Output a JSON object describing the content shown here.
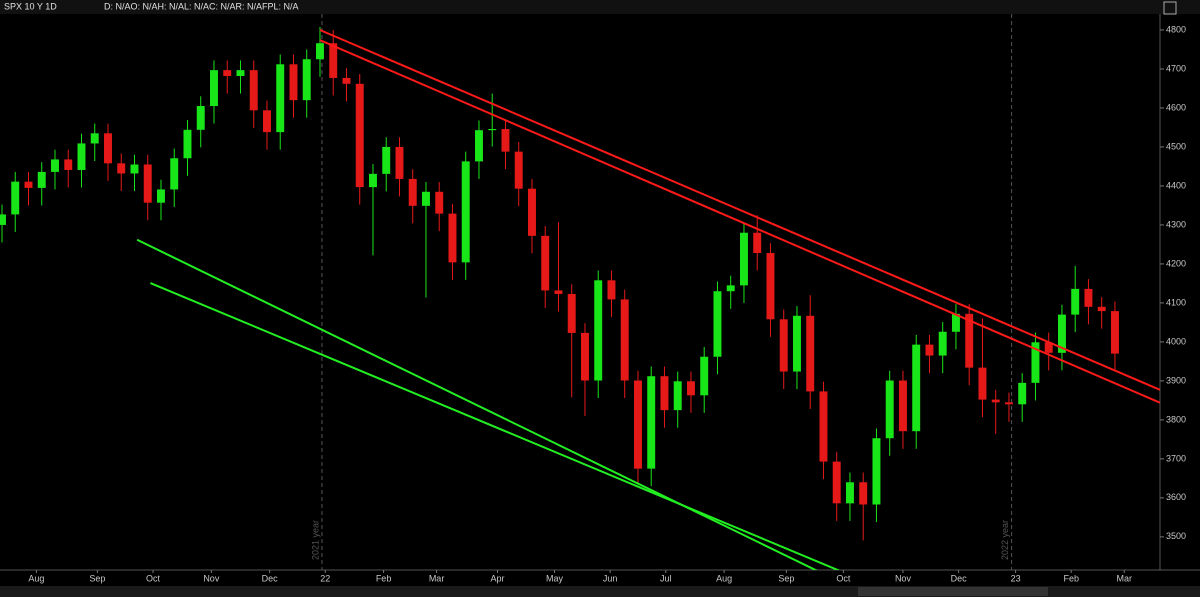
{
  "chart_data": {
    "type": "candlestick",
    "title": "SPX 10 Y 1D",
    "subtitle": "D: N/AO: N/AH: N/AL: N/AC: N/AR: N/AFPL: N/A",
    "open": [
      4300,
      4327,
      4411,
      4395,
      4436,
      4468,
      4441,
      4509,
      4535,
      4458,
      4432,
      4455,
      4357,
      4391,
      4471,
      4544,
      4605,
      4697,
      4682,
      4697,
      4594,
      4538,
      4712,
      4620,
      4725,
      4766,
      4677,
      4662,
      4397,
      4431,
      4500,
      4418,
      4349,
      4385,
      4329,
      4204,
      4463,
      4543,
      4546,
      4488,
      4393,
      4272,
      4132,
      4123,
      4023,
      3901,
      4158,
      4109,
      3901,
      3675,
      3912,
      3825,
      3899,
      3863,
      3962,
      4130,
      4145,
      4280,
      4228,
      4058,
      3924,
      4067,
      3873,
      3693,
      3586,
      3640,
      3583,
      3753,
      3901,
      3771,
      3993,
      3965,
      4026,
      4072,
      3934,
      3852,
      3845,
      3840,
      3895,
      3999,
      3972,
      4070,
      4136,
      4090,
      4079
    ],
    "high": [
      4352,
      4436,
      4436,
      4461,
      4493,
      4493,
      4534,
      4560,
      4560,
      4483,
      4480,
      4480,
      4416,
      4496,
      4569,
      4630,
      4722,
      4722,
      4722,
      4722,
      4619,
      4737,
      4737,
      4750,
      4808,
      4800,
      4702,
      4687,
      4456,
      4525,
      4525,
      4443,
      4410,
      4410,
      4354,
      4488,
      4568,
      4637,
      4571,
      4513,
      4418,
      4297,
      4307,
      4148,
      4048,
      4183,
      4183,
      4134,
      3926,
      3937,
      3937,
      3924,
      3924,
      3987,
      4155,
      4170,
      4305,
      4325,
      4253,
      4083,
      4092,
      4120,
      3898,
      3718,
      3665,
      3665,
      3778,
      3926,
      3926,
      4018,
      4018,
      4051,
      4097,
      4097,
      4060,
      3877,
      3870,
      3920,
      4024,
      4024,
      4095,
      4195,
      4161,
      4115,
      4104
    ],
    "low": [
      4255,
      4282,
      4350,
      4350,
      4391,
      4396,
      4396,
      4464,
      4413,
      4387,
      4387,
      4312,
      4312,
      4346,
      4426,
      4499,
      4560,
      4637,
      4637,
      4549,
      4493,
      4493,
      4575,
      4575,
      4680,
      4632,
      4617,
      4352,
      4222,
      4386,
      4373,
      4304,
      4114,
      4284,
      4159,
      4159,
      4418,
      4501,
      4443,
      4348,
      4227,
      4087,
      4078,
      3858,
      3810,
      3856,
      4064,
      3856,
      3636,
      3630,
      3780,
      3780,
      3818,
      3818,
      3917,
      4085,
      4100,
      4183,
      4013,
      3879,
      3879,
      3828,
      3648,
      3541,
      3541,
      3491,
      3538,
      3708,
      3726,
      3726,
      3920,
      3920,
      3981,
      3889,
      3807,
      3764,
      3795,
      3795,
      3850,
      3927,
      3927,
      4025,
      4045,
      4034,
      3925
    ],
    "close": [
      4327,
      4411,
      4395,
      4436,
      4468,
      4441,
      4509,
      4535,
      4458,
      4432,
      4455,
      4357,
      4391,
      4471,
      4544,
      4605,
      4697,
      4682,
      4697,
      4594,
      4538,
      4712,
      4620,
      4725,
      4766,
      4677,
      4662,
      4397,
      4431,
      4500,
      4418,
      4349,
      4385,
      4329,
      4204,
      4463,
      4543,
      4546,
      4488,
      4393,
      4272,
      4132,
      4123,
      4023,
      3901,
      4158,
      4109,
      3901,
      3675,
      3912,
      3825,
      3899,
      3863,
      3962,
      4130,
      4145,
      4280,
      4228,
      4058,
      3924,
      4067,
      3873,
      3693,
      3586,
      3640,
      3583,
      3753,
      3901,
      3771,
      3993,
      3965,
      4026,
      4072,
      3934,
      3852,
      3845,
      3840,
      3895,
      3999,
      3972,
      4070,
      4136,
      4090,
      4079,
      3970
    ],
    "up_color": "#19e619",
    "down_color": "#e61919",
    "xlim": [
      -0.15,
      87.4
    ],
    "xticks": [
      {
        "value": 2.6,
        "label": "Aug"
      },
      {
        "value": 7.2,
        "label": "Sep"
      },
      {
        "value": 11.4,
        "label": "Oct"
      },
      {
        "value": 15.8,
        "label": "Nov"
      },
      {
        "value": 20.2,
        "label": "Dec"
      },
      {
        "value": 24.4,
        "label": "22"
      },
      {
        "value": 28.8,
        "label": "Feb"
      },
      {
        "value": 32.8,
        "label": "Mar"
      },
      {
        "value": 37.4,
        "label": "Apr"
      },
      {
        "value": 41.7,
        "label": "May"
      },
      {
        "value": 45.9,
        "label": "Jun"
      },
      {
        "value": 50.1,
        "label": "Jul"
      },
      {
        "value": 54.5,
        "label": "Aug"
      },
      {
        "value": 59.2,
        "label": "Sep"
      },
      {
        "value": 63.5,
        "label": "Oct"
      },
      {
        "value": 68,
        "label": "Nov"
      },
      {
        "value": 72.2,
        "label": "Dec"
      },
      {
        "value": 76.5,
        "label": "23"
      },
      {
        "value": 80.7,
        "label": "Feb"
      },
      {
        "value": 84.7,
        "label": "Mar"
      }
    ],
    "ylim": [
      3415,
      4841
    ],
    "yticks": [
      3500,
      3600,
      3700,
      3800,
      3900,
      4000,
      4100,
      4200,
      4300,
      4400,
      4500,
      4600,
      4700,
      4800
    ],
    "year_markers": [
      {
        "x": 24.15,
        "label": "2021 year"
      },
      {
        "x": 76.2,
        "label": "2022 year"
      }
    ],
    "trend_lines": [
      {
        "color": "#ff1a1a",
        "x": [
          24.0,
          87.4
        ],
        "y": [
          4800,
          3877
        ]
      },
      {
        "color": "#ff1a1a",
        "x": [
          24.0,
          87.4
        ],
        "y": [
          4774,
          3844
        ]
      },
      {
        "color": "#22ee22",
        "x": [
          10.2,
          61.7
        ],
        "y": [
          4262,
          3410
        ]
      },
      {
        "color": "#22ee22",
        "x": [
          11.2,
          68.5
        ],
        "y": [
          4151,
          3338
        ]
      }
    ]
  }
}
